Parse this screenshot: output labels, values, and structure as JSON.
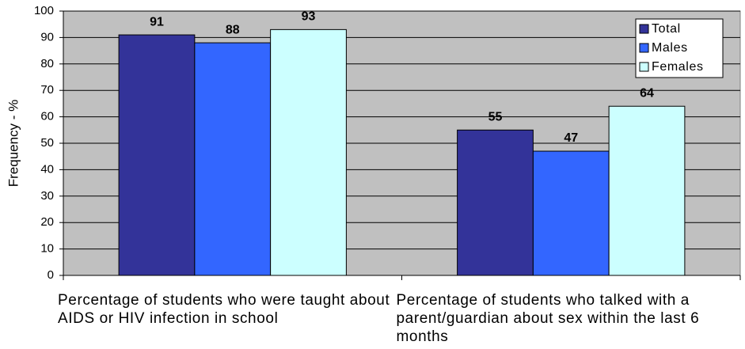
{
  "chart_data": {
    "type": "bar",
    "y_label": "Frequency - %",
    "categories": [
      "Percentage of students who were taught about AIDS or HIV infection in school",
      "Percentage of students who talked with a parent/guardian about sex within the last 6 months"
    ],
    "series": [
      {
        "name": "Total",
        "color": "#333399",
        "values": [
          91,
          55
        ]
      },
      {
        "name": "Males",
        "color": "#3366ff",
        "values": [
          88,
          47
        ]
      },
      {
        "name": "Females",
        "color": "#ccffff",
        "values": [
          93,
          64
        ]
      }
    ],
    "ylim": [
      0,
      100
    ],
    "yticks": [
      0,
      10,
      20,
      30,
      40,
      50,
      60,
      70,
      80,
      90,
      100
    ],
    "grid": true,
    "legend": "top-right",
    "plot_background": "#c0c0c0"
  }
}
